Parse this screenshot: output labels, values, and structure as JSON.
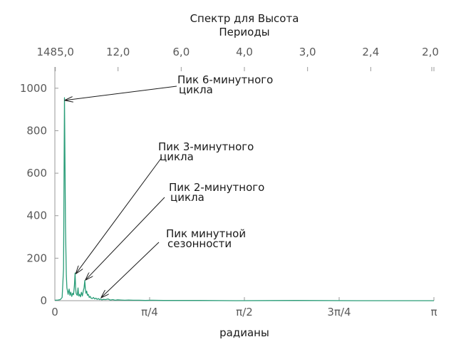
{
  "chart_data": {
    "type": "line",
    "title": "Спектр для Высота",
    "top_axis_label": "Периоды",
    "xlabel": "радианы",
    "ylabel": "",
    "xlim": [
      0,
      3.14159
    ],
    "ylim": [
      0,
      1100
    ],
    "yticks": [
      0,
      200,
      400,
      600,
      800,
      1000
    ],
    "ytick_labels": [
      "0",
      "200",
      "400",
      "600",
      "800",
      "1000"
    ],
    "xticks": [
      0,
      0.7854,
      1.5708,
      2.3562,
      3.14159
    ],
    "xtick_labels": [
      "0",
      "π/4",
      "π/2",
      "3π/4",
      "π"
    ],
    "top_ticks": [
      {
        "x": 0.0042,
        "label": "1485,0"
      },
      {
        "x": 0.5236,
        "label": "12,0"
      },
      {
        "x": 1.0472,
        "label": "6,0"
      },
      {
        "x": 1.5708,
        "label": "4,0"
      },
      {
        "x": 2.0944,
        "label": "3,0"
      },
      {
        "x": 2.618,
        "label": "2,4"
      },
      {
        "x": 3.14159,
        "label": "2,0"
      }
    ],
    "series": [
      {
        "color": "#2a9d78",
        "x": [
          0.0,
          0.025,
          0.045,
          0.06,
          0.072,
          0.08,
          0.088,
          0.095,
          0.1,
          0.105,
          0.11,
          0.118,
          0.125,
          0.132,
          0.14,
          0.148,
          0.155,
          0.162,
          0.168,
          0.172,
          0.176,
          0.18,
          0.186,
          0.192,
          0.198,
          0.205,
          0.212,
          0.22,
          0.228,
          0.236,
          0.242,
          0.248,
          0.253,
          0.258,
          0.264,
          0.27,
          0.277,
          0.285,
          0.293,
          0.3,
          0.31,
          0.32,
          0.33,
          0.34,
          0.35,
          0.36,
          0.37,
          0.38,
          0.39,
          0.4,
          0.42,
          0.44,
          0.46,
          0.48,
          0.5,
          0.52,
          0.55,
          0.58,
          0.61,
          0.65,
          0.7,
          0.75,
          0.8,
          0.9,
          1.0,
          1.2,
          1.5,
          2.0,
          2.5,
          3.14159
        ],
        "values": [
          2,
          3,
          5,
          15,
          150,
          955,
          350,
          120,
          60,
          45,
          30,
          55,
          25,
          40,
          20,
          35,
          28,
          70,
          130,
          60,
          35,
          30,
          25,
          60,
          22,
          30,
          18,
          40,
          22,
          48,
          60,
          95,
          55,
          35,
          45,
          25,
          30,
          15,
          20,
          12,
          10,
          15,
          8,
          12,
          6,
          10,
          5,
          8,
          4,
          6,
          5,
          8,
          3,
          5,
          2,
          4,
          3,
          2,
          3,
          2,
          2,
          1,
          2,
          1,
          1,
          1,
          0,
          1,
          0,
          0
        ]
      }
    ],
    "annotations": [
      {
        "text": [
          "Пик 6-минутного",
          "цикла"
        ],
        "x": 0.08,
        "y": 940
      },
      {
        "text": [
          "Пик 3-минутного",
          "цикла"
        ],
        "x": 0.17,
        "y": 125
      },
      {
        "text": [
          "Пик 2-минутного",
          "цикла"
        ],
        "x": 0.25,
        "y": 95
      },
      {
        "text": [
          "Пик минутной",
          "сезонности"
        ],
        "x": 0.38,
        "y": 12
      }
    ],
    "grid": false
  }
}
